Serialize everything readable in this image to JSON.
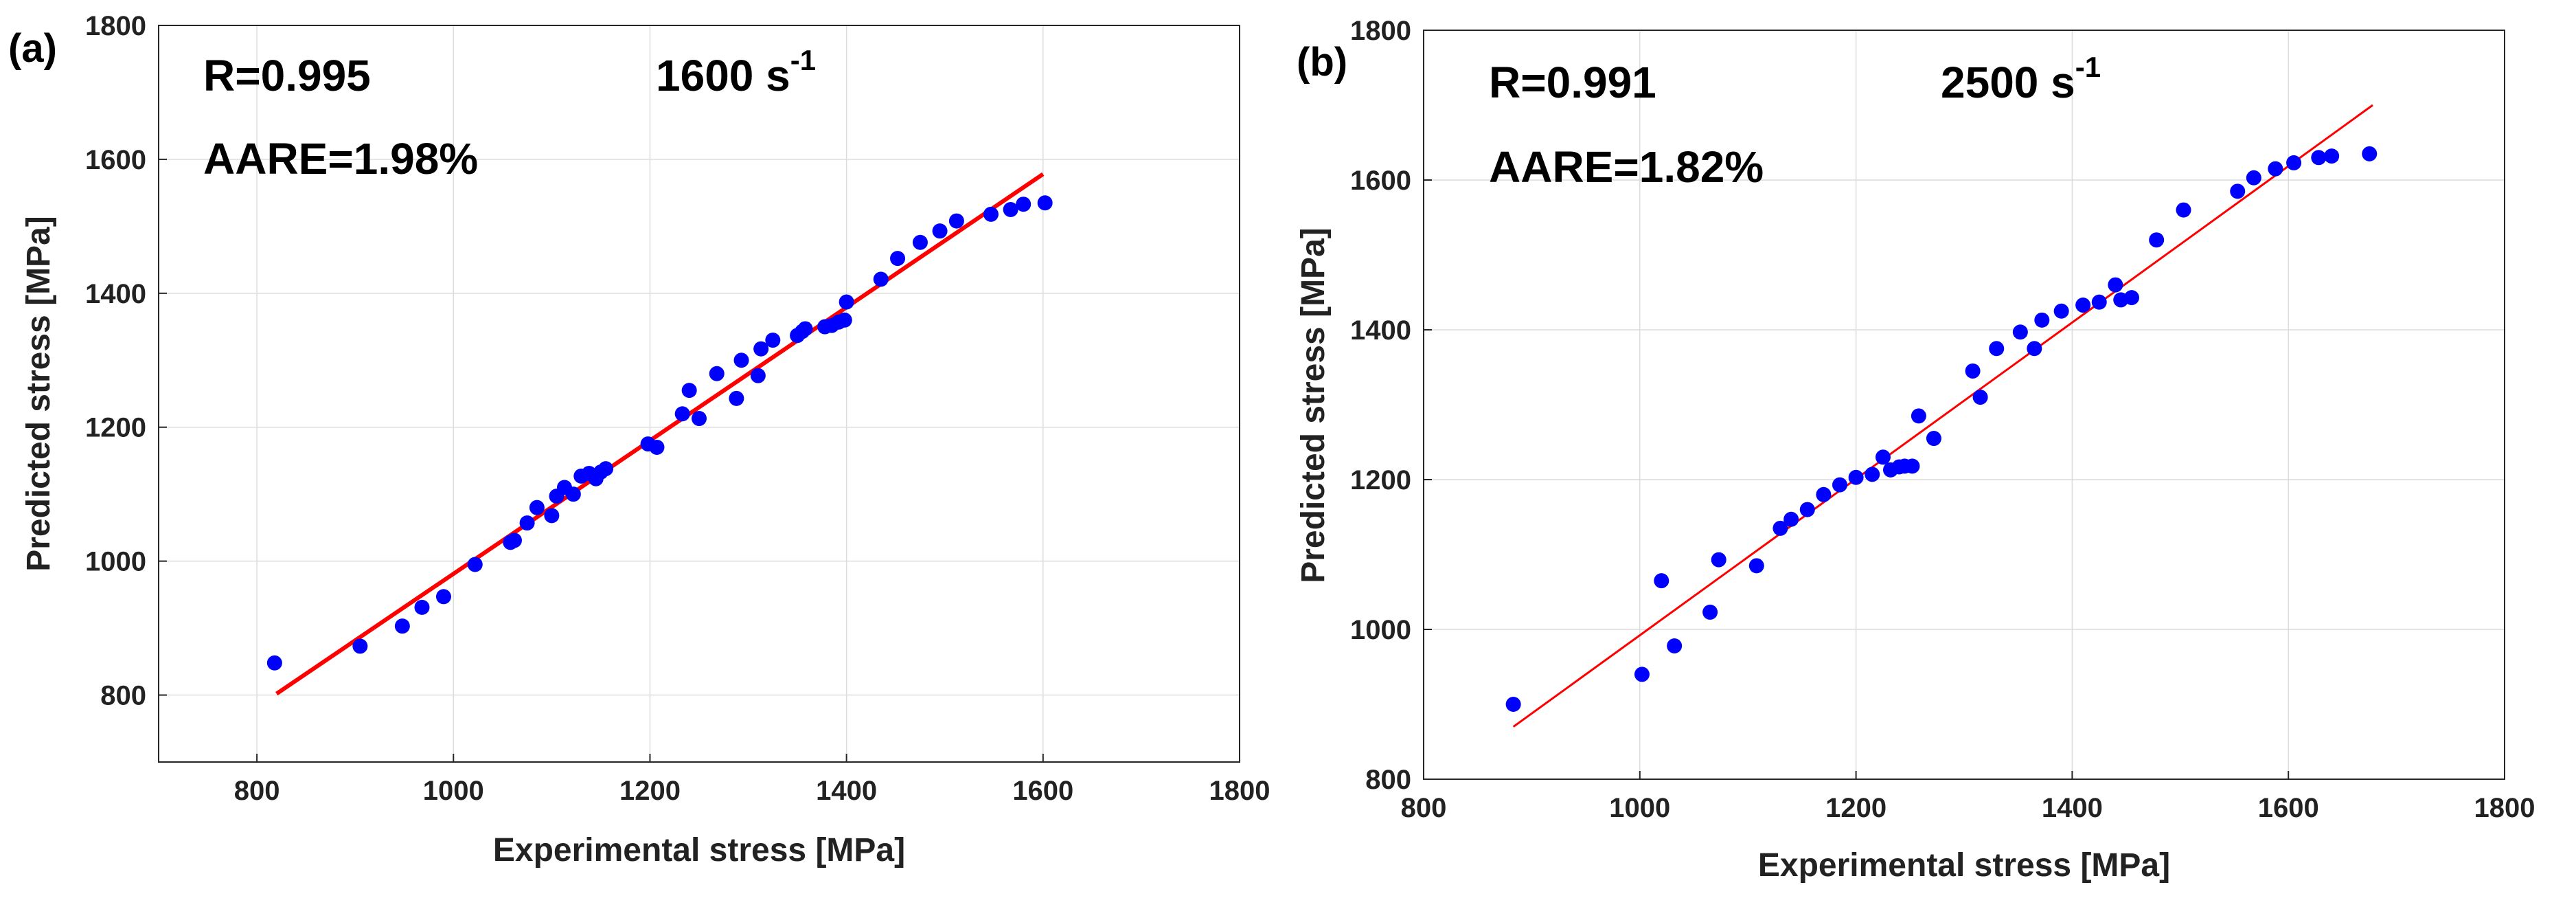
{
  "chart_data": [
    {
      "type": "scatter",
      "panel_label": "(a)",
      "xlabel": "Experimental stress [MPa]",
      "ylabel": "Predicted stress [MPa]",
      "xlim": [
        700,
        1800
      ],
      "ylim": [
        700,
        1800
      ],
      "xticks": [
        800,
        1000,
        1200,
        1400,
        1600,
        1800
      ],
      "yticks": [
        800,
        1000,
        1200,
        1400,
        1600,
        1800
      ],
      "grid": true,
      "annotations": {
        "r": "R=0.995",
        "aare": "AARE=1.98%",
        "rate": "1600 s",
        "rate_exp": "-1"
      },
      "series": [
        {
          "name": "Data points",
          "color": "#0000ff",
          "x": [
            818,
            905,
            948,
            968,
            990,
            1022,
            1058,
            1062,
            1075,
            1085,
            1100,
            1105,
            1113,
            1122,
            1130,
            1138,
            1145,
            1150,
            1155,
            1198,
            1207,
            1233,
            1240,
            1250,
            1268,
            1288,
            1293,
            1310,
            1313,
            1325,
            1350,
            1355,
            1358,
            1378,
            1385,
            1392,
            1398,
            1400,
            1435,
            1452,
            1475,
            1495,
            1512,
            1547,
            1567,
            1580,
            1602
          ],
          "y": [
            848,
            873,
            903,
            931,
            947,
            995,
            1028,
            1031,
            1057,
            1080,
            1068,
            1097,
            1110,
            1100,
            1127,
            1131,
            1123,
            1133,
            1138,
            1175,
            1170,
            1220,
            1255,
            1213,
            1280,
            1243,
            1300,
            1277,
            1317,
            1330,
            1337,
            1343,
            1347,
            1350,
            1352,
            1357,
            1360,
            1387,
            1421,
            1452,
            1476,
            1493,
            1508,
            1518,
            1525,
            1533,
            1535
          ]
        },
        {
          "name": "Fit line",
          "color": "#ff0000",
          "x": [
            820,
            1600
          ],
          "y": [
            802,
            1578
          ]
        }
      ]
    },
    {
      "type": "scatter",
      "panel_label": "(b)",
      "xlabel": "Experimental stress [MPa]",
      "ylabel": "Predicted stress [MPa]",
      "xlim": [
        800,
        1800
      ],
      "ylim": [
        800,
        1800
      ],
      "xticks": [
        800,
        1000,
        1200,
        1400,
        1600,
        1800
      ],
      "yticks": [
        800,
        1000,
        1200,
        1400,
        1600,
        1800
      ],
      "grid": true,
      "annotations": {
        "r": "R=0.991",
        "aare": "AARE=1.82%",
        "rate": "2500 s",
        "rate_exp": "-1"
      },
      "series": [
        {
          "name": "Data points",
          "color": "#0000ff",
          "x": [
            883,
            1002,
            1020,
            1032,
            1065,
            1073,
            1108,
            1130,
            1140,
            1155,
            1170,
            1185,
            1200,
            1215,
            1225,
            1232,
            1240,
            1245,
            1252,
            1258,
            1272,
            1308,
            1315,
            1330,
            1352,
            1365,
            1372,
            1390,
            1410,
            1425,
            1440,
            1445,
            1455,
            1478,
            1503,
            1553,
            1568,
            1588,
            1605,
            1628,
            1640,
            1675
          ],
          "y": [
            900,
            940,
            1065,
            978,
            1023,
            1093,
            1085,
            1135,
            1147,
            1160,
            1180,
            1193,
            1203,
            1207,
            1230,
            1213,
            1217,
            1218,
            1218,
            1285,
            1255,
            1345,
            1310,
            1375,
            1397,
            1375,
            1413,
            1425,
            1433,
            1437,
            1460,
            1440,
            1443,
            1520,
            1560,
            1585,
            1603,
            1615,
            1623,
            1630,
            1632,
            1635
          ]
        },
        {
          "name": "Fit line",
          "color": "#ff0000",
          "x": [
            883,
            1678
          ],
          "y": [
            870,
            1700
          ]
        }
      ]
    }
  ]
}
